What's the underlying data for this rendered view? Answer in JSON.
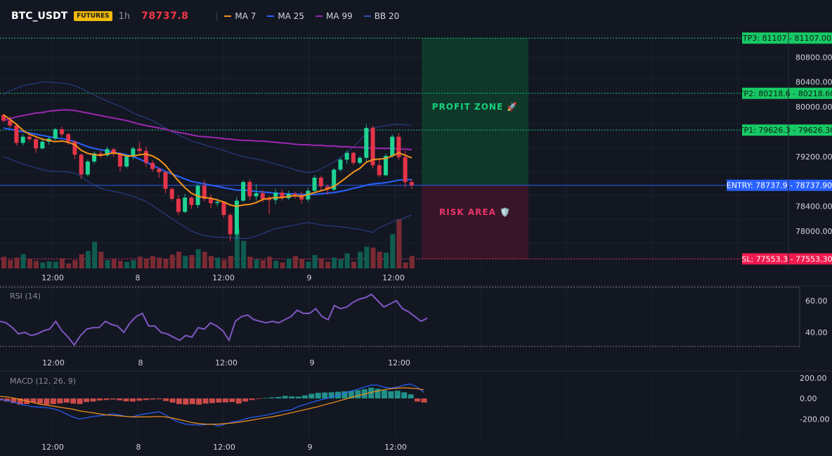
{
  "header": {
    "symbol": "BTC_USDT",
    "badge": "FUTURES",
    "timeframe": "1h",
    "price": "78737.8",
    "legend": [
      {
        "name": "MA 7",
        "color": "#f7931a"
      },
      {
        "name": "MA 25",
        "color": "#2962ff"
      },
      {
        "name": "MA 99",
        "color": "#9c27b0"
      },
      {
        "name": "BB 20",
        "color": "#2f4fa8"
      }
    ]
  },
  "colors": {
    "up": "#089981",
    "down": "#f23645",
    "bright_up": "#00e676",
    "bright_down": "#ff1744"
  },
  "chart_data": [
    {
      "type": "candlestick",
      "ylim": [
        77400,
        81200
      ],
      "y_ticks": [
        80800,
        80400,
        80000,
        79200,
        78400,
        78000
      ],
      "y_tick_labels": [
        "80800.00",
        "80400.00",
        "80000.00",
        "79200.00",
        "78400.00",
        "78000.00"
      ],
      "x_tick_labels": [
        "12:00",
        "8",
        "12:00",
        "9",
        "12:00"
      ],
      "ohlc": [
        [
          79870,
          79890,
          79750,
          79780
        ],
        [
          79780,
          79840,
          79660,
          79700
        ],
        [
          79700,
          79720,
          79380,
          79420
        ],
        [
          79420,
          79560,
          79380,
          79520
        ],
        [
          79520,
          79570,
          79440,
          79480
        ],
        [
          79480,
          79510,
          79260,
          79330
        ],
        [
          79330,
          79500,
          79320,
          79440
        ],
        [
          79440,
          79520,
          79390,
          79490
        ],
        [
          79490,
          79660,
          79460,
          79640
        ],
        [
          79640,
          79680,
          79520,
          79560
        ],
        [
          79560,
          79580,
          79390,
          79440
        ],
        [
          79440,
          79460,
          79160,
          79230
        ],
        [
          79230,
          79250,
          78840,
          78910
        ],
        [
          78910,
          79150,
          78880,
          79120
        ],
        [
          79120,
          79280,
          79080,
          79250
        ],
        [
          79250,
          79290,
          79180,
          79220
        ],
        [
          79220,
          79360,
          79190,
          79320
        ],
        [
          79320,
          79330,
          79200,
          79240
        ],
        [
          79240,
          79270,
          78960,
          79040
        ],
        [
          79040,
          79230,
          79010,
          79200
        ],
        [
          79200,
          79360,
          79150,
          79330
        ],
        [
          79330,
          79440,
          79250,
          79290
        ],
        [
          79290,
          79360,
          79030,
          79100
        ],
        [
          79100,
          79140,
          78960,
          79000
        ],
        [
          79000,
          79020,
          78860,
          78950
        ],
        [
          78950,
          78960,
          78610,
          78680
        ],
        [
          78680,
          78700,
          78490,
          78520
        ],
        [
          78520,
          78580,
          78260,
          78310
        ],
        [
          78310,
          78600,
          78290,
          78540
        ],
        [
          78540,
          78550,
          78360,
          78420
        ],
        [
          78420,
          78760,
          78370,
          78730
        ],
        [
          78730,
          78820,
          78480,
          78520
        ],
        [
          78520,
          78590,
          78370,
          78450
        ],
        [
          78450,
          78530,
          78400,
          78470
        ],
        [
          78470,
          78480,
          78220,
          78260
        ],
        [
          78260,
          78290,
          77840,
          77950
        ],
        [
          77950,
          78550,
          77880,
          78490
        ],
        [
          78490,
          78820,
          78470,
          78790
        ],
        [
          78790,
          78830,
          78500,
          78560
        ],
        [
          78560,
          78760,
          78490,
          78610
        ],
        [
          78610,
          78660,
          78460,
          78520
        ],
        [
          78520,
          78570,
          78280,
          78500
        ],
        [
          78500,
          78680,
          78430,
          78620
        ],
        [
          78620,
          78670,
          78490,
          78530
        ],
        [
          78530,
          78650,
          78500,
          78600
        ],
        [
          78600,
          78630,
          78520,
          78580
        ],
        [
          78580,
          78640,
          78440,
          78510
        ],
        [
          78510,
          78700,
          78470,
          78650
        ],
        [
          78650,
          78900,
          78620,
          78860
        ],
        [
          78860,
          78890,
          78660,
          78720
        ],
        [
          78720,
          78750,
          78590,
          78670
        ],
        [
          78670,
          79020,
          78640,
          78990
        ],
        [
          78990,
          79180,
          78960,
          79150
        ],
        [
          79150,
          79300,
          79080,
          79260
        ],
        [
          79260,
          79280,
          79060,
          79100
        ],
        [
          79100,
          79210,
          79070,
          79180
        ],
        [
          79180,
          79720,
          79120,
          79660
        ],
        [
          79660,
          79700,
          79010,
          79060
        ],
        [
          79060,
          79170,
          78870,
          78900
        ],
        [
          78900,
          79250,
          78880,
          79210
        ],
        [
          79210,
          79560,
          79180,
          79520
        ],
        [
          79520,
          79580,
          79150,
          79190
        ],
        [
          79190,
          79290,
          78700,
          78790
        ],
        [
          78790,
          78840,
          78680,
          78740
        ]
      ],
      "volume": [
        28,
        20,
        26,
        34,
        22,
        18,
        14,
        17,
        16,
        24,
        12,
        20,
        34,
        42,
        64,
        40,
        20,
        22,
        18,
        16,
        20,
        28,
        24,
        30,
        26,
        22,
        33,
        40,
        30,
        32,
        46,
        40,
        30,
        26,
        20,
        30,
        94,
        66,
        28,
        22,
        20,
        28,
        18,
        14,
        24,
        30,
        22,
        16,
        32,
        24,
        16,
        26,
        22,
        36,
        16,
        40,
        52,
        50,
        40,
        38,
        82,
        118,
        14,
        30
      ],
      "ma7": [
        79870,
        79800,
        79720,
        79620,
        79560,
        79520,
        79480,
        79460,
        79440,
        79450,
        79430,
        79390,
        79300,
        79250,
        79230,
        79220,
        79240,
        79260,
        79240,
        79210,
        79210,
        79230,
        79240,
        79210,
        79150,
        79060,
        78930,
        78810,
        78700,
        78610,
        78560,
        78540,
        78530,
        78500,
        78470,
        78420,
        78400,
        78420,
        78430,
        78460,
        78510,
        78530,
        78540,
        78540,
        78560,
        78570,
        78560,
        78590,
        78620,
        78650,
        78680,
        78720,
        78790,
        78870,
        78950,
        79010,
        79110,
        79150,
        79160,
        79170,
        79210,
        79260,
        79220,
        79180
      ],
      "ma25": [
        79660,
        79640,
        79620,
        79600,
        79580,
        79560,
        79540,
        79520,
        79500,
        79490,
        79470,
        79440,
        79400,
        79360,
        79330,
        79310,
        79290,
        79270,
        79250,
        79230,
        79200,
        79160,
        79110,
        79060,
        79010,
        78960,
        78920,
        78880,
        78840,
        78800,
        78780,
        78760,
        78740,
        78720,
        78700,
        78680,
        78660,
        78660,
        78650,
        78640,
        78630,
        78620,
        78610,
        78600,
        78600,
        78600,
        78590,
        78590,
        78590,
        78600,
        78610,
        78620,
        78640,
        78660,
        78690,
        78710,
        78740,
        78760,
        78770,
        78780,
        78800,
        78820,
        78830,
        78830
      ],
      "ma99": [
        79780,
        79810,
        79840,
        79860,
        79880,
        79900,
        79910,
        79930,
        79940,
        79950,
        79950,
        79940,
        79920,
        79900,
        79880,
        79860,
        79840,
        79820,
        79800,
        79780,
        79750,
        79720,
        79700,
        79680,
        79660,
        79640,
        79610,
        79590,
        79570,
        79550,
        79530,
        79520,
        79510,
        79500,
        79490,
        79480,
        79470,
        79460,
        79460,
        79450,
        79450,
        79440,
        79430,
        79420,
        79410,
        79400,
        79390,
        79390,
        79380,
        79380,
        79370,
        79370,
        79360,
        79360,
        79350,
        79350,
        79340,
        79340,
        79330,
        79330,
        79330,
        79320,
        79320,
        79310
      ],
      "bb_upper": [
        80200,
        80260,
        80300,
        80340,
        80360,
        80380,
        80400,
        80400,
        80390,
        80380,
        80370,
        80340,
        80300,
        80240,
        80190,
        80140,
        80090,
        80050,
        80010,
        79960,
        79900,
        79860,
        79820,
        79780,
        79720,
        79660,
        79600,
        79550,
        79500,
        79450,
        79420,
        79390,
        79360,
        79330,
        79300,
        79260,
        79230,
        79200,
        79180,
        79160,
        79140,
        79110,
        79080,
        79050,
        79020,
        78990,
        78960,
        78940,
        78960,
        79000,
        79060,
        79110,
        79180,
        79260,
        79360,
        79460,
        79570,
        79660,
        79680,
        79700,
        79710,
        79720,
        79710,
        79700
      ],
      "bb_lower": [
        79200,
        79160,
        79120,
        79080,
        79050,
        79020,
        78990,
        78970,
        78960,
        78960,
        78950,
        78930,
        78880,
        78800,
        78740,
        78690,
        78660,
        78640,
        78620,
        78590,
        78560,
        78520,
        78480,
        78410,
        78340,
        78270,
        78200,
        78130,
        78070,
        78000,
        77960,
        77930,
        77910,
        77900,
        77900,
        77900,
        77880,
        77880,
        77890,
        77920,
        77960,
        78000,
        78040,
        78060,
        78080,
        78100,
        78120,
        78140,
        78120,
        78100,
        78090,
        78080,
        78070,
        78060,
        78040,
        78030,
        78000,
        77980,
        78060,
        78100,
        78150,
        78180,
        78220,
        78260
      ],
      "levels": [
        {
          "label": "TP3: 81107.00",
          "value": 81107.0,
          "tag": "TP3: 81107 - 81107.00"
        },
        {
          "label": "TP2: 80218.60",
          "value": 80218.6,
          "tag": "TP2: 80218.6 - 80218.60"
        },
        {
          "label": "TP1: 79626.30",
          "value": 79626.3,
          "tag": "TP1: 79626.3 - 79626.30"
        },
        {
          "label": "ENTRY: 78737.90",
          "value": 78737.9,
          "tag": "ENTRY: 78737.9 - 78737.90"
        },
        {
          "label": "SL: 77553.30",
          "value": 77553.3,
          "tag": "SL: 77553.3 - 77553.30"
        }
      ],
      "annotations": [
        "PROFIT ZONE 🚀",
        "RISK AREA 🛡️"
      ]
    },
    {
      "type": "line",
      "title": "RSI (14)",
      "ylim": [
        28,
        68
      ],
      "y_ticks": [
        60,
        40
      ],
      "y_tick_labels": [
        "60.00",
        "40.00"
      ],
      "bands": [
        70,
        30
      ],
      "x_tick_labels": [
        "12:00",
        "8",
        "12:00",
        "9",
        "12:00"
      ],
      "values": [
        47,
        46,
        43,
        39,
        40,
        38,
        39,
        41,
        42,
        47,
        41,
        37,
        32,
        38,
        42,
        43,
        43,
        47,
        45,
        44,
        40,
        46,
        50,
        52,
        44,
        44,
        40,
        39,
        37,
        35,
        38,
        37,
        43,
        42,
        46,
        44,
        41,
        35,
        47,
        50,
        51,
        48,
        47,
        46,
        47,
        46,
        48,
        50,
        54,
        52,
        52,
        55,
        50,
        48,
        57,
        55,
        56,
        59,
        61,
        62,
        64,
        60,
        56,
        58,
        60,
        55,
        53,
        50,
        47,
        49
      ]
    },
    {
      "type": "bar+line",
      "title": "MACD (12, 26, 9)",
      "ylim": [
        -280,
        240
      ],
      "y_ticks": [
        200,
        0,
        -200
      ],
      "y_tick_labels": [
        "200.00",
        "0.00",
        "-200.00"
      ],
      "x_tick_labels": [
        "12:00",
        "8",
        "12:00",
        "9",
        "12:00"
      ],
      "histogram": [
        -20,
        -30,
        -45,
        -60,
        -55,
        -40,
        -50,
        -60,
        -55,
        -48,
        -40,
        -50,
        -55,
        -35,
        -30,
        -20,
        -15,
        -10,
        -18,
        -28,
        -30,
        -22,
        -15,
        -10,
        -8,
        -25,
        -40,
        -55,
        -60,
        -55,
        -60,
        -50,
        -45,
        -40,
        -38,
        -35,
        -50,
        -30,
        -15,
        -5,
        5,
        10,
        15,
        25,
        20,
        18,
        30,
        45,
        55,
        58,
        60,
        65,
        70,
        75,
        80,
        90,
        105,
        95,
        80,
        70,
        75,
        60,
        40,
        -30,
        -40
      ],
      "macd": [
        -10,
        -20,
        -35,
        -55,
        -70,
        -80,
        -85,
        -90,
        -100,
        -120,
        -150,
        -180,
        -200,
        -190,
        -175,
        -170,
        -160,
        -150,
        -160,
        -175,
        -180,
        -160,
        -150,
        -140,
        -130,
        -160,
        -200,
        -230,
        -250,
        -255,
        -260,
        -255,
        -250,
        -270,
        -250,
        -230,
        -220,
        -200,
        -185,
        -175,
        -165,
        -150,
        -135,
        -120,
        -110,
        -80,
        -60,
        -40,
        -20,
        -5,
        10,
        30,
        50,
        70,
        90,
        110,
        130,
        130,
        110,
        100,
        110,
        130,
        140,
        110,
        60
      ],
      "signal": [
        20,
        15,
        5,
        -10,
        -25,
        -40,
        -55,
        -65,
        -75,
        -85,
        -95,
        -105,
        -120,
        -130,
        -140,
        -150,
        -160,
        -165,
        -170,
        -175,
        -180,
        -180,
        -180,
        -178,
        -175,
        -180,
        -190,
        -205,
        -220,
        -235,
        -245,
        -250,
        -252,
        -250,
        -245,
        -240,
        -232,
        -222,
        -212,
        -200,
        -190,
        -180,
        -168,
        -155,
        -140,
        -125,
        -110,
        -95,
        -80,
        -62,
        -45,
        -28,
        -10,
        8,
        25,
        42,
        58,
        72,
        85,
        95,
        100,
        104,
        100,
        95,
        85
      ]
    }
  ]
}
